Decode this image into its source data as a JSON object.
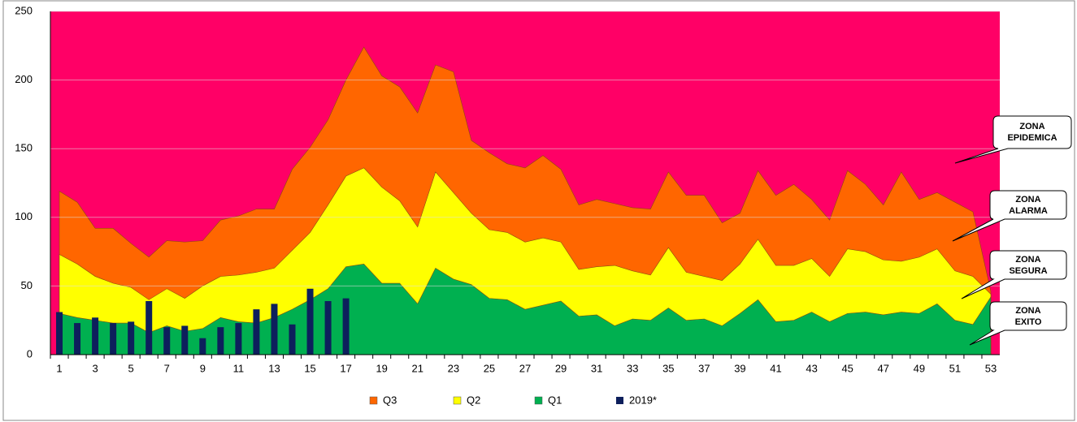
{
  "chart_data": {
    "type": "area",
    "categories": [
      1,
      null,
      3,
      null,
      5,
      null,
      7,
      null,
      9,
      null,
      11,
      null,
      13,
      null,
      15,
      null,
      17,
      null,
      19,
      null,
      21,
      null,
      23,
      null,
      25,
      null,
      27,
      null,
      29,
      null,
      31,
      null,
      33,
      null,
      35,
      null,
      37,
      null,
      39,
      null,
      41,
      null,
      43,
      null,
      45,
      null,
      47,
      null,
      49,
      null,
      51,
      null,
      53
    ],
    "ylim": [
      0,
      250
    ],
    "yticks": [
      0,
      50,
      100,
      150,
      200,
      250
    ],
    "grid": true,
    "background": "#ff0066",
    "series": [
      {
        "name": "Q3",
        "color": "#ff6600",
        "values": [
          119,
          111,
          92,
          92,
          81,
          71,
          83,
          82,
          83,
          98,
          101,
          106,
          106,
          135,
          151,
          171,
          200,
          224,
          203,
          195,
          176,
          211,
          206,
          156,
          147,
          139,
          136,
          145,
          135,
          109,
          113,
          110,
          107,
          106,
          133,
          116,
          116,
          96,
          103,
          134,
          116,
          124,
          113,
          98,
          134,
          124,
          109,
          133,
          113,
          118,
          111,
          104,
          46
        ]
      },
      {
        "name": "Q2",
        "color": "#ffff00",
        "values": [
          73,
          66,
          57,
          52,
          49,
          40,
          48,
          41,
          50,
          57,
          58,
          60,
          63,
          76,
          89,
          109,
          130,
          136,
          122,
          112,
          93,
          133,
          118,
          103,
          91,
          89,
          82,
          85,
          82,
          62,
          64,
          65,
          61,
          58,
          78,
          60,
          57,
          54,
          66,
          84,
          65,
          65,
          70,
          57,
          77,
          75,
          69,
          68,
          71,
          77,
          61,
          57,
          44
        ]
      },
      {
        "name": "Q1",
        "color": "#00b050",
        "values": [
          30,
          27,
          25,
          23,
          23,
          16,
          21,
          17,
          19,
          27,
          24,
          23,
          27,
          33,
          40,
          48,
          64,
          66,
          52,
          52,
          37,
          63,
          55,
          51,
          41,
          40,
          33,
          36,
          39,
          28,
          29,
          21,
          26,
          25,
          34,
          25,
          26,
          21,
          30,
          40,
          24,
          25,
          31,
          24,
          30,
          31,
          29,
          31,
          30,
          37,
          25,
          22,
          42
        ]
      },
      {
        "name": "2019*",
        "type": "bar",
        "color": "#0d1f5c",
        "values": [
          31,
          23,
          27,
          23,
          24,
          39,
          20,
          21,
          12,
          20,
          23,
          33,
          37,
          22,
          48,
          39,
          41,
          null,
          null,
          null,
          null,
          null,
          null,
          null,
          null,
          null,
          null,
          null,
          null,
          null,
          null,
          null,
          null,
          null,
          null,
          null,
          null,
          null,
          null,
          null,
          null,
          null,
          null,
          null,
          null,
          null,
          null,
          null,
          null,
          null,
          null,
          null,
          null
        ]
      }
    ],
    "annotations": [
      [
        "ZONA",
        "EPIDEMICA"
      ],
      [
        "ZONA",
        "ALARMA"
      ],
      [
        "ZONA",
        "SEGURA"
      ],
      [
        "ZONA",
        "EXITO"
      ]
    ]
  }
}
